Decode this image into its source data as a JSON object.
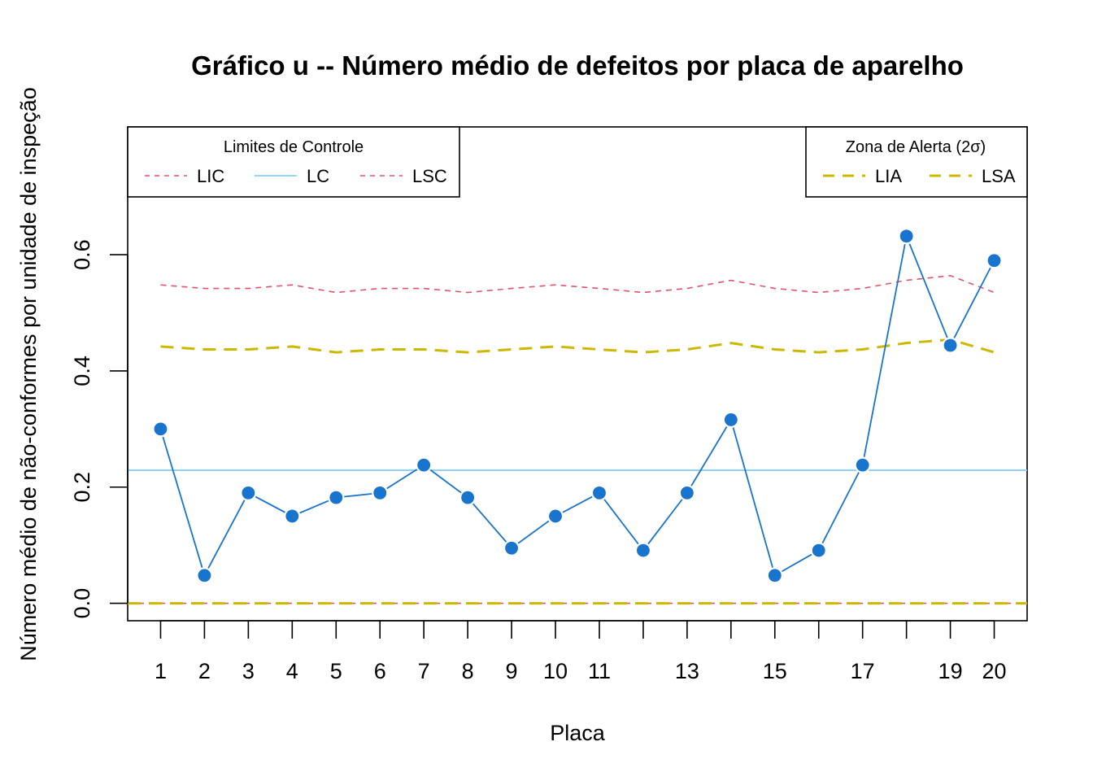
{
  "chart_data": {
    "type": "line",
    "title": "Gráfico u -- Número médio de defeitos por placa de aparelho",
    "xlabel": "Placa",
    "ylabel": "Número médio de não-conformes por unidade de inspeção",
    "x": [
      1,
      2,
      3,
      4,
      5,
      6,
      7,
      8,
      9,
      10,
      11,
      12,
      13,
      14,
      15,
      16,
      17,
      18,
      19,
      20
    ],
    "x_tick_labels": [
      "1",
      "2",
      "3",
      "4",
      "5",
      "6",
      "7",
      "8",
      "9",
      "10",
      "11",
      "",
      "13",
      "",
      "15",
      "",
      "17",
      "",
      "19",
      "20"
    ],
    "xlim": [
      0.25,
      20.75
    ],
    "ylim": [
      -0.03,
      0.82
    ],
    "y_ticks": [
      0.0,
      0.2,
      0.4,
      0.6
    ],
    "y_tick_labels": [
      "0.0",
      "0.2",
      "0.4",
      "0.6"
    ],
    "grid": false,
    "series": [
      {
        "name": "u",
        "color": "#1874CD",
        "values": [
          0.3,
          0.048,
          0.19,
          0.15,
          0.182,
          0.19,
          0.238,
          0.182,
          0.095,
          0.15,
          0.19,
          0.091,
          0.19,
          0.316,
          0.048,
          0.091,
          0.238,
          0.632,
          0.444,
          0.59
        ]
      },
      {
        "name": "LIC",
        "color": "#DF536B",
        "style": "dotted",
        "values": [
          0,
          0,
          0,
          0,
          0,
          0,
          0,
          0,
          0,
          0,
          0,
          0,
          0,
          0,
          0,
          0,
          0,
          0,
          0,
          0
        ]
      },
      {
        "name": "LC",
        "color": "#87CEFA",
        "style": "solid",
        "constant": 0.229
      },
      {
        "name": "LSC",
        "color": "#DF536B",
        "style": "dotted",
        "values": [
          0.548,
          0.542,
          0.542,
          0.548,
          0.535,
          0.542,
          0.542,
          0.535,
          0.542,
          0.548,
          0.542,
          0.535,
          0.542,
          0.556,
          0.542,
          0.535,
          0.542,
          0.556,
          0.564,
          0.535
        ]
      },
      {
        "name": "LIA",
        "color": "#CDB800",
        "style": "dashed",
        "values": [
          0,
          0,
          0,
          0,
          0,
          0,
          0,
          0,
          0,
          0,
          0,
          0,
          0,
          0,
          0,
          0,
          0,
          0,
          0,
          0
        ]
      },
      {
        "name": "LSA",
        "color": "#CDB800",
        "style": "dashed",
        "values": [
          0.442,
          0.437,
          0.437,
          0.442,
          0.432,
          0.437,
          0.437,
          0.432,
          0.437,
          0.442,
          0.437,
          0.432,
          0.437,
          0.448,
          0.437,
          0.432,
          0.437,
          0.448,
          0.454,
          0.432
        ]
      }
    ],
    "legends": [
      {
        "title": "Limites de Controle",
        "placement": "top-left",
        "entries": [
          {
            "label": "LIC",
            "color": "#DF536B",
            "style": "dotted"
          },
          {
            "label": "LC",
            "color": "#87CEFA",
            "style": "solid"
          },
          {
            "label": "LSC",
            "color": "#DF536B",
            "style": "dotted"
          }
        ]
      },
      {
        "title": "Zona de Alerta (2σ)",
        "placement": "top-right",
        "entries": [
          {
            "label": "LIA",
            "color": "#CDB800",
            "style": "dashed"
          },
          {
            "label": "LSA",
            "color": "#CDB800",
            "style": "dashed"
          }
        ]
      }
    ]
  }
}
